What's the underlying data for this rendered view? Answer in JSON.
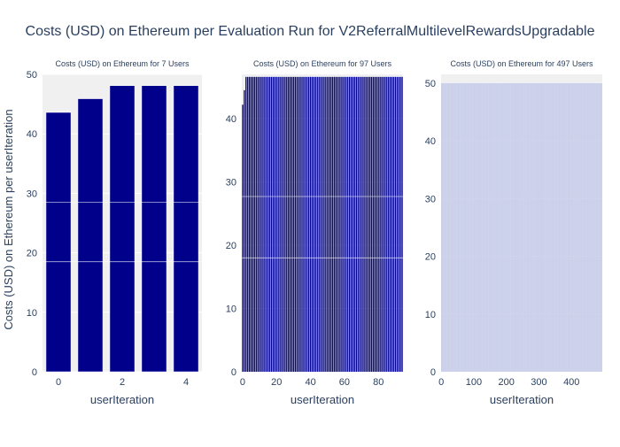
{
  "title": "Costs (USD) on Ethereum per Evaluation Run for V2ReferralMultilevelRewardsUpgradable",
  "ylabel": "Costs (USD) on Ethereum per userIteration",
  "colors": {
    "bar_dark": "#00008b",
    "bar_light": "#c5cbe9",
    "plot_bg": "#f0f0f0",
    "grid": "#ffffff",
    "text": "#2a3f5f"
  },
  "chart_data": [
    {
      "type": "bar",
      "title": "Costs (USD) on Ethereum for 7 Users",
      "xlabel": "userIteration",
      "x_ticks": [
        "0",
        "2",
        "4"
      ],
      "y_ticks": [
        "0",
        "10",
        "20",
        "30",
        "40",
        "50"
      ],
      "xlim": [
        -0.5,
        4.5
      ],
      "ylim": [
        0,
        50
      ],
      "x": [
        0,
        1,
        2,
        3,
        4
      ],
      "values": [
        43.6,
        45.9,
        48.1,
        48.1,
        48.1
      ],
      "segments": [
        18.5,
        28.5
      ]
    },
    {
      "type": "bar",
      "title": "Costs (USD) on Ethereum for 97 Users",
      "xlabel": "userIteration",
      "x_ticks": [
        "0",
        "20",
        "40",
        "60",
        "80"
      ],
      "y_ticks": [
        "0",
        "10",
        "20",
        "30",
        "40"
      ],
      "xlim": [
        -0.5,
        94.5
      ],
      "ylim": [
        0,
        47
      ],
      "bar_count": 95,
      "values_pattern": {
        "0": 42.2,
        "1": 44.5,
        "default": 46.6
      },
      "segments": [
        18.0,
        27.7
      ]
    },
    {
      "type": "bar",
      "title": "Costs (USD) on Ethereum for 497 Users",
      "xlabel": "userIteration",
      "x_ticks": [
        "0",
        "100",
        "200",
        "300",
        "400"
      ],
      "y_ticks": [
        "0",
        "10",
        "20",
        "30",
        "40",
        "50"
      ],
      "xlim": [
        -0.5,
        494.5
      ],
      "ylim": [
        0,
        51.5
      ],
      "bar_count": 495,
      "values_pattern": {
        "default": 50.0
      },
      "segments": []
    }
  ]
}
